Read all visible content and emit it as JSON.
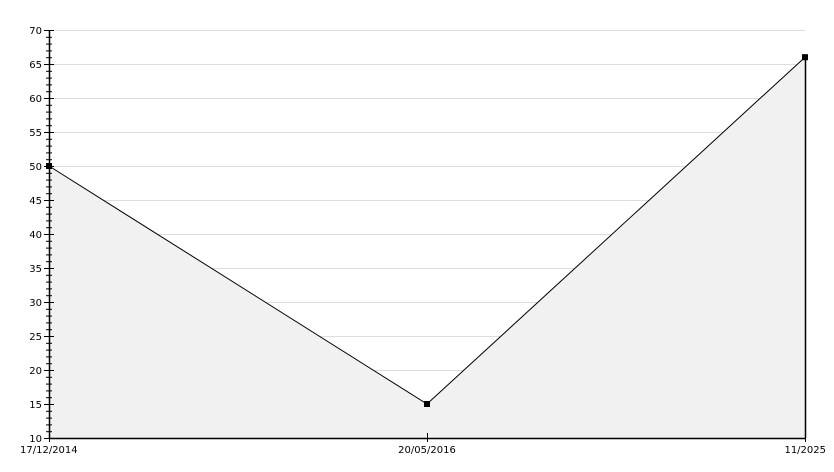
{
  "chart_data": {
    "type": "area",
    "categories": [
      "17/12/2014",
      "20/05/2016",
      "11/2025"
    ],
    "values": [
      50,
      15,
      66
    ],
    "ylim": [
      10,
      70
    ],
    "yticks": [
      10,
      15,
      20,
      25,
      30,
      35,
      40,
      45,
      50,
      55,
      60,
      65,
      70
    ],
    "y_minor_step": 1,
    "grid": true,
    "title": "",
    "xlabel": "",
    "ylabel": "",
    "colors": {
      "line": "#000000",
      "fill": "#f1f1f1",
      "grid": "#dddddd",
      "axis": "#000000"
    }
  }
}
